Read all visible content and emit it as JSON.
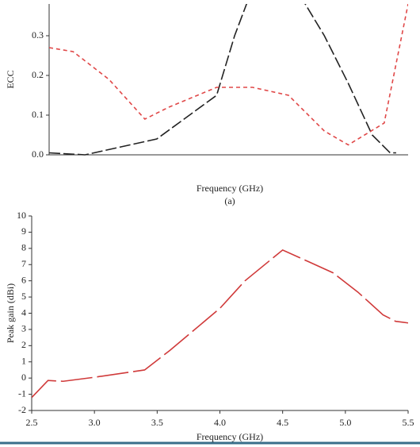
{
  "chart_data": [
    {
      "type": "line",
      "ylabel": "ECC",
      "xlabel": "Frequency (GHz)",
      "annotation": "(a)",
      "xlim": [
        2.5,
        5.5
      ],
      "ylim": [
        0,
        0.38
      ],
      "yticks": [
        {
          "value": 0,
          "label": "0.0"
        },
        0.1,
        0.2,
        0.3
      ],
      "series": [
        {
          "color": "#222222",
          "dash": "14 4",
          "x": [
            2.5,
            2.8,
            3.4,
            3.9,
            4.05,
            4.2,
            4.5,
            4.8,
            5.0,
            5.2,
            5.35,
            5.4
          ],
          "values": [
            0.005,
            0,
            0.04,
            0.15,
            0.3,
            0.42,
            0.45,
            0.3,
            0.18,
            0.05,
            0.005,
            0.005
          ]
        },
        {
          "color": "#e04848",
          "dash": "5 4",
          "x": [
            2.5,
            2.7,
            3.0,
            3.3,
            3.5,
            3.9,
            4.2,
            4.5,
            4.8,
            5.0,
            5.3,
            5.5
          ],
          "values": [
            0.27,
            0.26,
            0.19,
            0.09,
            0.12,
            0.17,
            0.17,
            0.15,
            0.06,
            0.025,
            0.08,
            0.38
          ]
        }
      ]
    },
    {
      "type": "line",
      "ylabel": "Peak gain (dBi)",
      "xlabel": "Frequency (GHz)",
      "xlim": [
        2.5,
        5.5
      ],
      "ylim": [
        -2,
        10
      ],
      "xticks": [
        2.5,
        {
          "value": 3,
          "label": "3.0"
        },
        3.5,
        {
          "value": 4,
          "label": "4.0"
        },
        4.5,
        {
          "value": 5,
          "label": "5.0"
        },
        5.5
      ],
      "yticks": [
        -2,
        -1,
        0,
        1,
        2,
        3,
        4,
        5,
        6,
        7,
        8,
        9,
        10
      ],
      "series": [
        {
          "color": "#d03a3a",
          "dash": "40 6",
          "x": [
            2.5,
            2.63,
            2.75,
            3.0,
            3.4,
            3.6,
            4.0,
            4.2,
            4.5,
            4.7,
            4.9,
            5.1,
            5.3,
            5.4,
            5.5
          ],
          "values": [
            -1.2,
            -0.15,
            -0.2,
            0.05,
            0.5,
            1.7,
            4.3,
            6,
            7.9,
            7.2,
            6.5,
            5.3,
            3.9,
            3.5,
            3.4
          ]
        }
      ]
    }
  ]
}
